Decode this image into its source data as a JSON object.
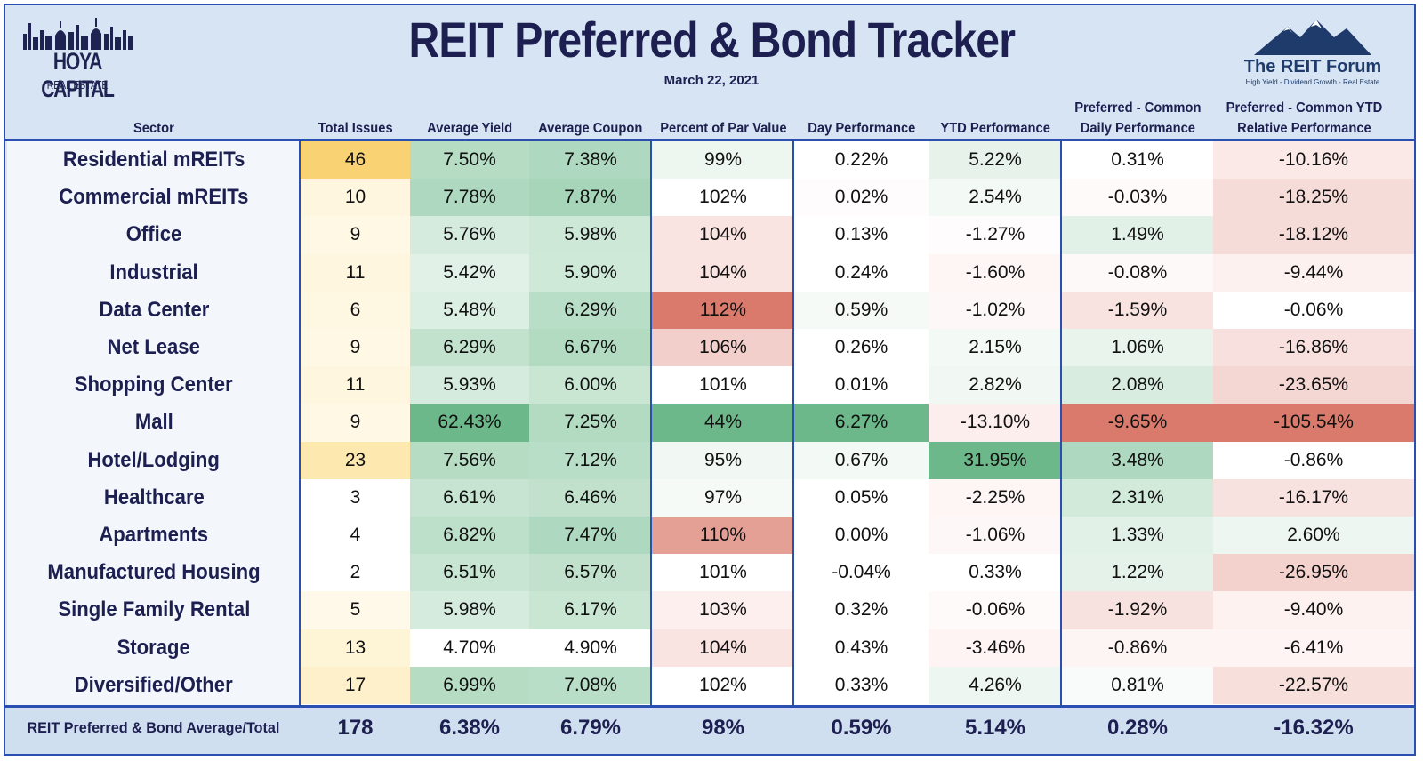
{
  "header": {
    "title": "REIT Preferred & Bond Tracker",
    "date": "March 22, 2021",
    "logo_left": {
      "name": "HOYA CAPITAL",
      "sub": "REAL ESTATE"
    },
    "logo_right": {
      "name": "The REIT Forum",
      "tagline": "High Yield - Dividend Growth - Real Estate"
    }
  },
  "colors": {
    "frame": "#2a4fb0",
    "header_bg": "#d6e4f3",
    "title": "#1c1f4f",
    "green_strong": "#6db88a",
    "red_strong": "#d97a6c",
    "yellow_strong": "#f8d273"
  },
  "chart_data": {
    "type": "table",
    "title": "REIT Preferred & Bond Tracker",
    "subtitle": "March 22, 2021",
    "columns": [
      "Sector",
      "Total Issues",
      "Average Yield",
      "Average Coupon",
      "Percent of Par Value",
      "Day Performance",
      "YTD Performance",
      "Preferred - Common Daily Performance",
      "Preferred - Common YTD Relative Performance"
    ],
    "rows": [
      {
        "sector": "Residential mREITs",
        "values": [
          "46",
          "7.50%",
          "7.38%",
          "99%",
          "0.22%",
          "5.22%",
          "0.31%",
          "-10.16%"
        ]
      },
      {
        "sector": "Commercial mREITs",
        "values": [
          "10",
          "7.78%",
          "7.87%",
          "102%",
          "0.02%",
          "2.54%",
          "-0.03%",
          "-18.25%"
        ]
      },
      {
        "sector": "Office",
        "values": [
          "9",
          "5.76%",
          "5.98%",
          "104%",
          "0.13%",
          "-1.27%",
          "1.49%",
          "-18.12%"
        ]
      },
      {
        "sector": "Industrial",
        "values": [
          "11",
          "5.42%",
          "5.90%",
          "104%",
          "0.24%",
          "-1.60%",
          "-0.08%",
          "-9.44%"
        ]
      },
      {
        "sector": "Data Center",
        "values": [
          "6",
          "5.48%",
          "6.29%",
          "112%",
          "0.59%",
          "-1.02%",
          "-1.59%",
          "-0.06%"
        ]
      },
      {
        "sector": "Net Lease",
        "values": [
          "9",
          "6.29%",
          "6.67%",
          "106%",
          "0.26%",
          "2.15%",
          "1.06%",
          "-16.86%"
        ]
      },
      {
        "sector": "Shopping Center",
        "values": [
          "11",
          "5.93%",
          "6.00%",
          "101%",
          "0.01%",
          "2.82%",
          "2.08%",
          "-23.65%"
        ]
      },
      {
        "sector": "Mall",
        "values": [
          "9",
          "62.43%",
          "7.25%",
          "44%",
          "6.27%",
          "-13.10%",
          "-9.65%",
          "-105.54%"
        ]
      },
      {
        "sector": "Hotel/Lodging",
        "values": [
          "23",
          "7.56%",
          "7.12%",
          "95%",
          "0.67%",
          "31.95%",
          "3.48%",
          "-0.86%"
        ]
      },
      {
        "sector": "Healthcare",
        "values": [
          "3",
          "6.61%",
          "6.46%",
          "97%",
          "0.05%",
          "-2.25%",
          "2.31%",
          "-16.17%"
        ]
      },
      {
        "sector": "Apartments",
        "values": [
          "4",
          "6.82%",
          "7.47%",
          "110%",
          "0.00%",
          "-1.06%",
          "1.33%",
          "2.60%"
        ]
      },
      {
        "sector": "Manufactured Housing",
        "values": [
          "2",
          "6.51%",
          "6.57%",
          "101%",
          "-0.04%",
          "0.33%",
          "1.22%",
          "-26.95%"
        ]
      },
      {
        "sector": "Single Family Rental",
        "values": [
          "5",
          "5.98%",
          "6.17%",
          "103%",
          "0.32%",
          "-0.06%",
          "-1.92%",
          "-9.40%"
        ]
      },
      {
        "sector": "Storage",
        "values": [
          "13",
          "4.70%",
          "4.90%",
          "104%",
          "0.43%",
          "-3.46%",
          "-0.86%",
          "-6.41%"
        ]
      },
      {
        "sector": "Diversified/Other",
        "values": [
          "17",
          "6.99%",
          "7.08%",
          "102%",
          "0.33%",
          "4.26%",
          "0.81%",
          "-22.57%"
        ]
      }
    ],
    "total": {
      "label": "REIT Preferred & Bond Average/Total",
      "values": [
        "178",
        "6.38%",
        "6.79%",
        "98%",
        "0.59%",
        "5.14%",
        "0.28%",
        "-16.32%"
      ]
    },
    "cell_colors": [
      [
        "#f8d273",
        "#b6dcc3",
        "#aed9c0",
        "#eef6f0",
        "#ffffff",
        "#e6f2ea",
        "#ffffff",
        "#fbe9e7"
      ],
      [
        "#fef6de",
        "#aed9c0",
        "#a6d5b9",
        "#ffffff",
        "#fefcfc",
        "#f3f9f5",
        "#fffafa",
        "#f6dcd8"
      ],
      [
        "#fef8e4",
        "#d5ebde",
        "#cde8d7",
        "#fae4e1",
        "#ffffff",
        "#fefcfc",
        "#e2f1e7",
        "#f6dcd8"
      ],
      [
        "#fef6de",
        "#e2f1e7",
        "#cfe9d9",
        "#fae4e1",
        "#ffffff",
        "#fdf6f5",
        "#fef9f9",
        "#fdf1ef"
      ],
      [
        "#fef7e1",
        "#dcefe3",
        "#b9dec7",
        "#d97a6c",
        "#f5faf7",
        "#fdf8f7",
        "#f8e3e0",
        "#ffffff"
      ],
      [
        "#fef8e4",
        "#c2e2cd",
        "#b3dbc2",
        "#f2cfca",
        "#ffffff",
        "#f3f9f5",
        "#e9f4ed",
        "#f7e0dd"
      ],
      [
        "#fef6de",
        "#d5ebde",
        "#c9e6d3",
        "#ffffff",
        "#ffffff",
        "#f1f8f3",
        "#d8eddf",
        "#f4d6d2"
      ],
      [
        "#fef8e4",
        "#6db88a",
        "#b3dbc2",
        "#6db88a",
        "#6db88a",
        "#fbeeec",
        "#d97a6c",
        "#d97a6c"
      ],
      [
        "#fde8b0",
        "#b6dcc3",
        "#b9dec7",
        "#f1f8f3",
        "#f3f9f5",
        "#6db88a",
        "#aed9c0",
        "#ffffff"
      ],
      [
        "#ffffff",
        "#c6e4d1",
        "#c1e1cc",
        "#f5faf7",
        "#ffffff",
        "#fdf6f5",
        "#d1ead9",
        "#f7e2df"
      ],
      [
        "#ffffff",
        "#bde0ca",
        "#aed9c0",
        "#e5a096",
        "#ffffff",
        "#fdf8f7",
        "#e2f1e7",
        "#eef6f1"
      ],
      [
        "#ffffff",
        "#c7e5d2",
        "#c1e1cc",
        "#ffffff",
        "#ffffff",
        "#ffffff",
        "#e4f2e9",
        "#f3d2cd"
      ],
      [
        "#fef9e8",
        "#d5ebde",
        "#c9e6d3",
        "#fcefed",
        "#ffffff",
        "#fffafa",
        "#f8e2df",
        "#fdf2f0"
      ],
      [
        "#fef4d6",
        "#ffffff",
        "#ffffff",
        "#fae4e1",
        "#ffffff",
        "#fdf4f3",
        "#fdf5f4",
        "#fdf4f3"
      ],
      [
        "#fef0ca",
        "#b6dcc3",
        "#b9dec7",
        "#ffffff",
        "#ffffff",
        "#eef6f1",
        "#f8fbf9",
        "#f7dfdc"
      ]
    ]
  }
}
